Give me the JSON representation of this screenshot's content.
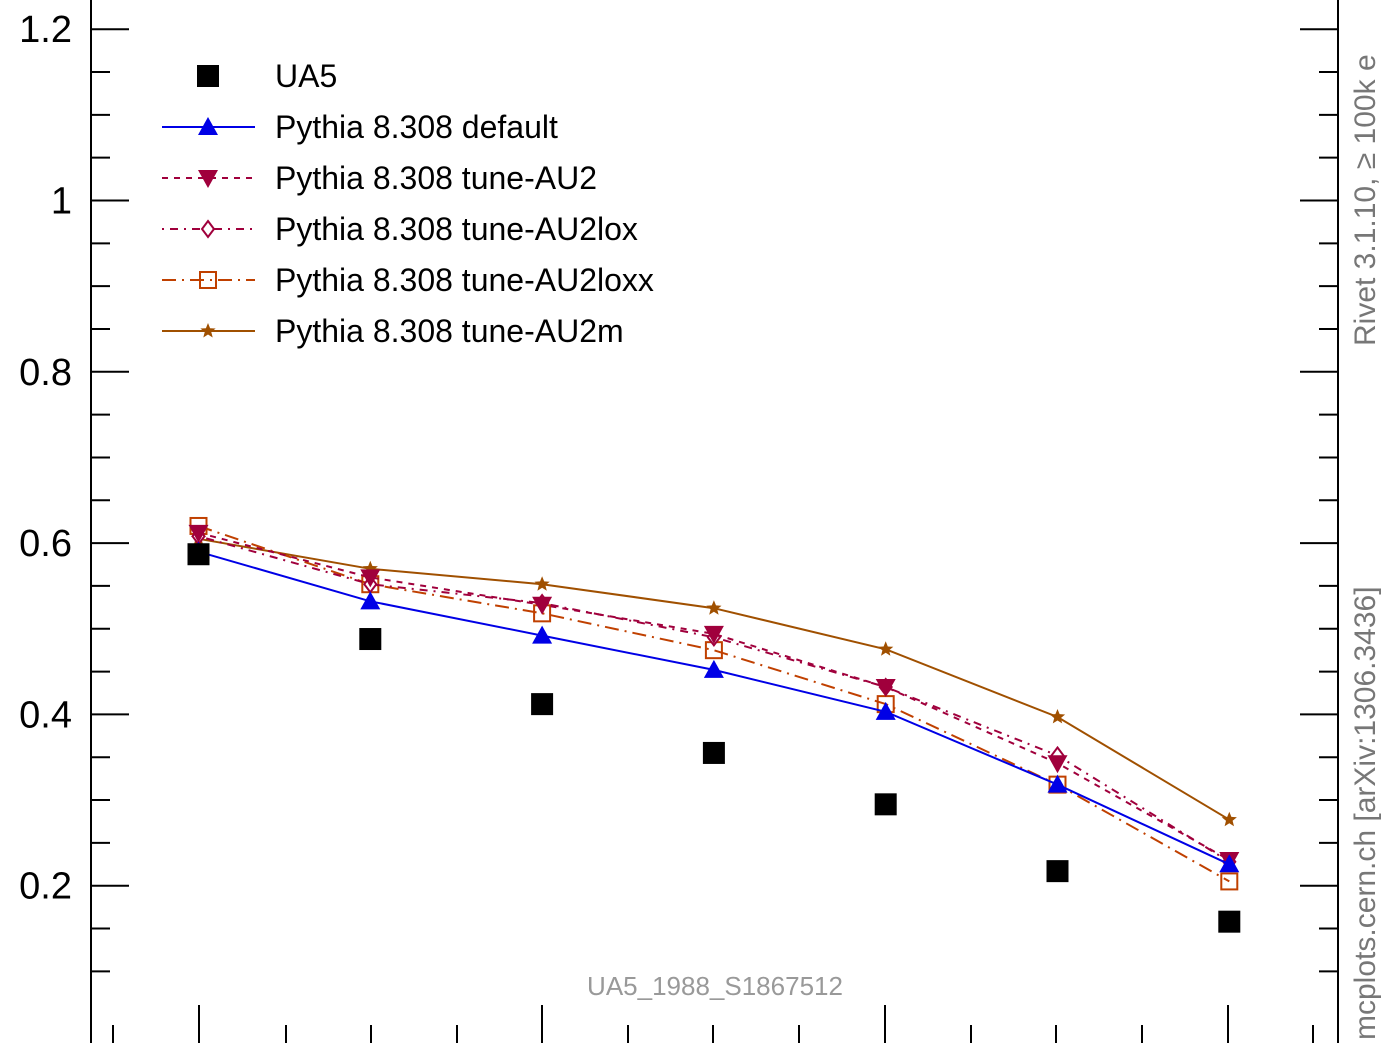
{
  "chart_data": {
    "type": "line",
    "title": "",
    "xlabel": "",
    "ylabel": "",
    "ylim": [
      0.0,
      1.23
    ],
    "x_count": 7,
    "y_ticks": [
      "0.2",
      "0.4",
      "0.6",
      "0.8",
      "1",
      "1.2"
    ],
    "y_tick_values": [
      0.2,
      0.4,
      0.6,
      0.8,
      1.0,
      1.2
    ],
    "analysis_id": "UA5_1988_S1867512",
    "side_text_top": "Rivet 3.1.10, ≥ 100k e",
    "side_text_bottom": "mcplots.cern.ch [arXiv:1306.3436]",
    "legend_position": "top-left",
    "series": [
      {
        "name": "UA5",
        "style": "data",
        "color": "#000000",
        "marker": "square-filled",
        "dash": "",
        "values": [
          0.587,
          0.488,
          0.412,
          0.355,
          0.295,
          0.217,
          0.158
        ]
      },
      {
        "name": "Pythia 8.308 default",
        "style": "line",
        "color": "#0000e6",
        "marker": "triangle-up-filled",
        "dash": "",
        "values": [
          0.59,
          0.532,
          0.492,
          0.452,
          0.403,
          0.318,
          0.225
        ]
      },
      {
        "name": "Pythia 8.308 tune-AU2",
        "style": "line",
        "color": "#a0003c",
        "marker": "triangle-down-filled",
        "dash": "6,6",
        "values": [
          0.612,
          0.56,
          0.528,
          0.494,
          0.432,
          0.343,
          0.23
        ]
      },
      {
        "name": "Pythia 8.308 tune-AU2lox",
        "style": "line",
        "color": "#a0003c",
        "marker": "diamond-open",
        "dash": "2,6,8,6",
        "values": [
          0.608,
          0.552,
          0.53,
          0.49,
          0.432,
          0.352,
          0.228
        ]
      },
      {
        "name": "Pythia 8.308 tune-AU2loxx",
        "style": "line",
        "color": "#c04000",
        "marker": "square-open",
        "dash": "14,6,2,6",
        "values": [
          0.62,
          0.552,
          0.518,
          0.475,
          0.412,
          0.318,
          0.205
        ]
      },
      {
        "name": "Pythia 8.308 tune-AU2m",
        "style": "line",
        "color": "#a05000",
        "marker": "star",
        "dash": "",
        "values": [
          0.605,
          0.57,
          0.552,
          0.524,
          0.476,
          0.397,
          0.277
        ]
      }
    ]
  }
}
